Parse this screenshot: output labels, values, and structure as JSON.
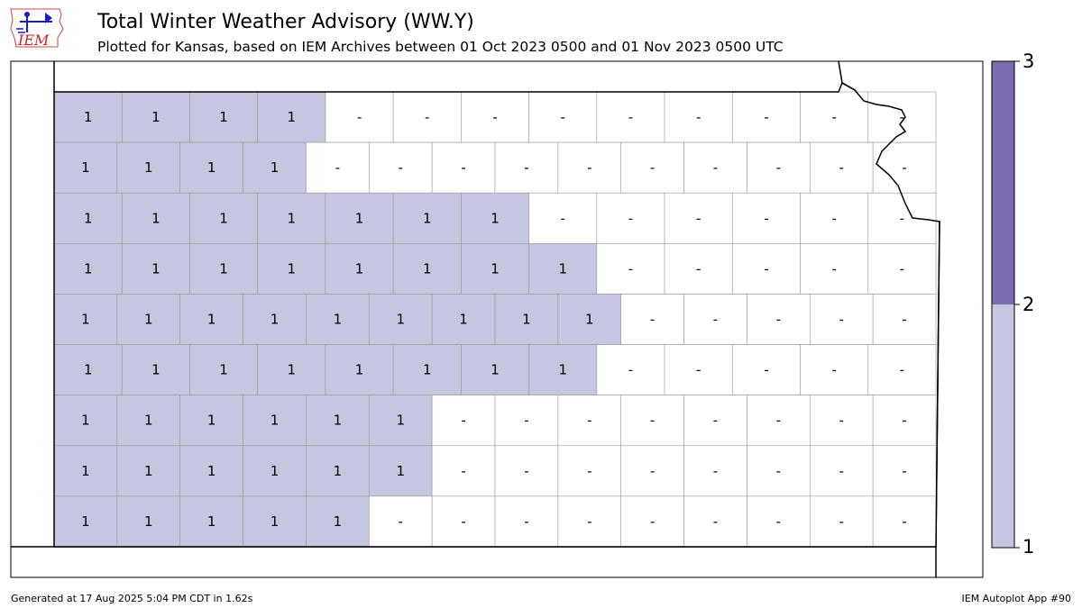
{
  "header": {
    "title": "Total Winter Weather Advisory (WW.Y)",
    "subtitle": "Plotted for Kansas, based on IEM Archives  between 01 Oct 2023 0500 and 01 Nov 2023 0500 UTC",
    "logo_text": "IEM"
  },
  "legend": {
    "labels": [
      "3",
      "2",
      "1"
    ],
    "colors": {
      "level_1": "#c5c6e0",
      "level_2": "#7b6cb1",
      "no_data": "#ffffff"
    }
  },
  "map_data": {
    "region": "Kansas",
    "rows": [
      [
        "1",
        "1",
        "1",
        "1",
        "-",
        "-",
        "-",
        "-",
        "-",
        "-",
        "-",
        "-",
        "-"
      ],
      [
        "1",
        "1",
        "1",
        "1",
        "-",
        "-",
        "-",
        "-",
        "-",
        "-",
        "-",
        "-",
        "-",
        "-"
      ],
      [
        "1",
        "1",
        "1",
        "1",
        "1",
        "1",
        "1",
        "-",
        "-",
        "-",
        "-",
        "-",
        "-"
      ],
      [
        "1",
        "1",
        "1",
        "1",
        "1",
        "1",
        "1",
        "1",
        "-",
        "-",
        "-",
        "-",
        "-"
      ],
      [
        "1",
        "1",
        "1",
        "1",
        "1",
        "1",
        "1",
        "1",
        "1",
        "-",
        "-",
        "-",
        "-",
        "-"
      ],
      [
        "1",
        "1",
        "1",
        "1",
        "1",
        "1",
        "1",
        "1",
        "-",
        "-",
        "-",
        "-",
        "-"
      ],
      [
        "1",
        "1",
        "1",
        "1",
        "1",
        "1",
        "-",
        "-",
        "-",
        "-",
        "-",
        "-",
        "-",
        "-"
      ],
      [
        "1",
        "1",
        "1",
        "1",
        "1",
        "1",
        "-",
        "-",
        "-",
        "-",
        "-",
        "-",
        "-",
        "-"
      ],
      [
        "1",
        "1",
        "1",
        "1",
        "1",
        "-",
        "-",
        "-",
        "-",
        "-",
        "-",
        "-",
        "-",
        "-"
      ]
    ]
  },
  "footer": {
    "generated": "Generated at 17 Aug 2025 5:04 PM CDT in 1.62s",
    "app": "IEM Autoplot App #90"
  }
}
